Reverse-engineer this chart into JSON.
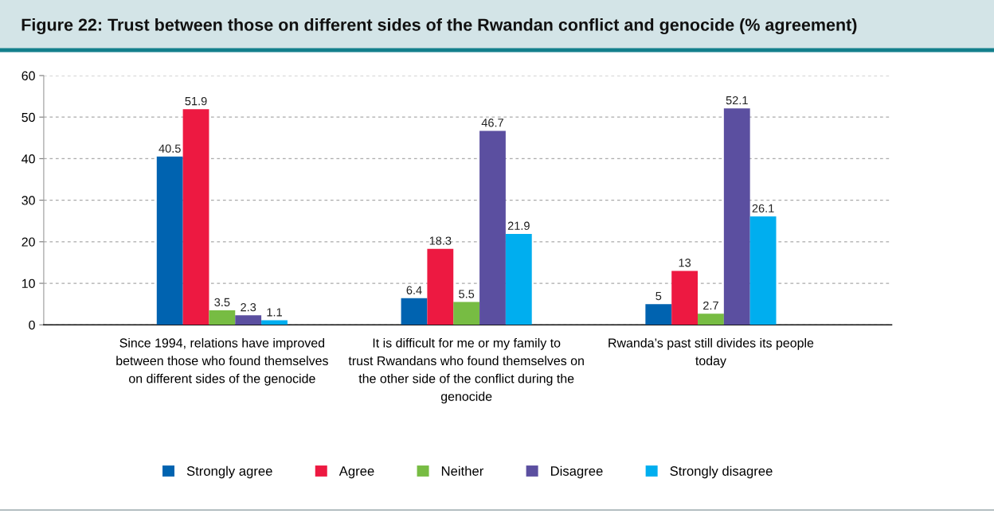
{
  "chart_data": {
    "type": "bar",
    "title": "Figure 22: Trust between those on different sides of the Rwandan conflict and genocide (% agreement)",
    "categories": [
      "Since 1994, relations have improved\nbetween those who found themselves\non different sides of the genocide",
      "It is difficult for me or my family to\ntrust Rwandans who found themselves on\nthe other side of the conflict during the\ngenocide",
      "Rwanda’s past still divides its people\ntoday"
    ],
    "series": [
      {
        "name": "Strongly agree",
        "color": "#0063b0",
        "values": [
          40.5,
          6.4,
          5
        ]
      },
      {
        "name": "Agree",
        "color": "#ed1941",
        "values": [
          51.9,
          18.3,
          13
        ]
      },
      {
        "name": "Neither",
        "color": "#77bc43",
        "values": [
          3.5,
          5.5,
          2.7
        ]
      },
      {
        "name": "Disagree",
        "color": "#5b4fa0",
        "values": [
          2.3,
          46.7,
          52.1
        ]
      },
      {
        "name": "Strongly disagree",
        "color": "#00aeef",
        "values": [
          1.1,
          21.9,
          26.1
        ]
      }
    ],
    "ylim": [
      0,
      60
    ],
    "yticks": [
      0,
      10,
      20,
      30,
      40,
      50,
      60
    ],
    "grid": "y",
    "legend": "bottom",
    "data_labels": true
  }
}
